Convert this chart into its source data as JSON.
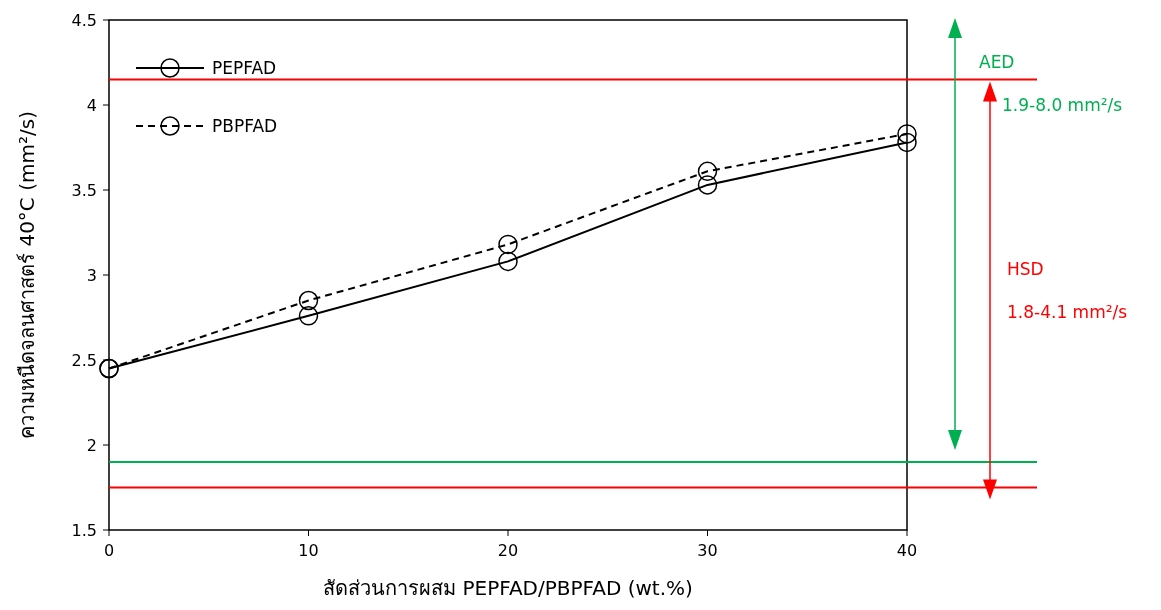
{
  "chart_data": {
    "type": "line",
    "xlabel": "สัดส่วนการผสม PEPFAD/PBPFAD (wt.%)",
    "ylabel": "ความหนืดจลนศาสตร์ 40°C (mm²/s)",
    "x": [
      0,
      10,
      20,
      30,
      40
    ],
    "series": [
      {
        "name": "PEPFAD",
        "color": "#000000",
        "line_style": "solid",
        "values": [
          2.45,
          2.76,
          3.08,
          3.53,
          3.78
        ]
      },
      {
        "name": "PBPFAD",
        "color": "#000000",
        "line_style": "dashed",
        "values": [
          2.45,
          2.85,
          3.18,
          3.61,
          3.83
        ]
      }
    ],
    "marker": "circle",
    "legend": "top left",
    "grid": false,
    "xlim": [
      0,
      40
    ],
    "xticks": [
      0,
      10,
      20,
      30,
      40
    ],
    "ylim": [
      1.5,
      4.5
    ],
    "yticks": [
      1.5,
      2,
      2.5,
      3,
      3.5,
      4,
      4.5
    ],
    "ref_lines": [
      {
        "axis": "y",
        "value": 4.15,
        "color": "#ff0000"
      },
      {
        "axis": "y",
        "value": 1.9,
        "color": "#00b050",
        "label": "AED"
      },
      {
        "axis": "y",
        "value": 1.75,
        "color": "#ff0000",
        "label": "HSD"
      }
    ],
    "annotations": [
      "1.9-8.0 mm²/s",
      "1.8-4.1 mm²/s"
    ]
  }
}
